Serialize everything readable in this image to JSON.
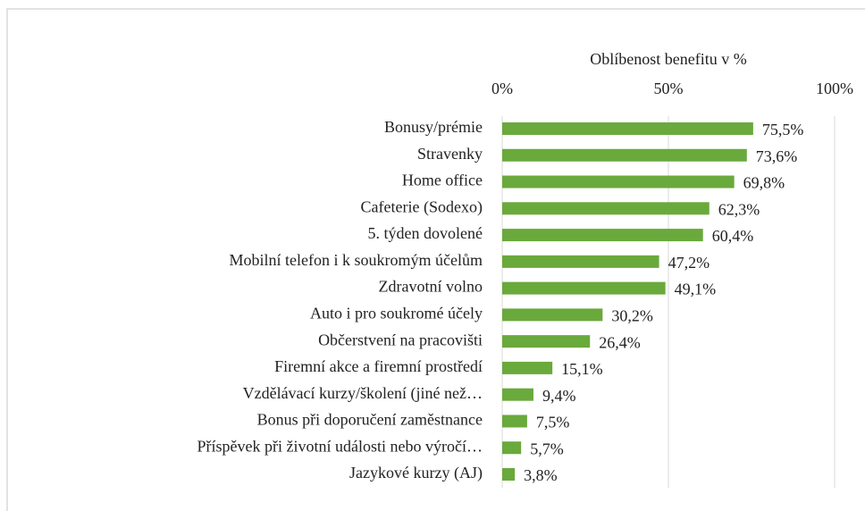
{
  "chart_data": {
    "type": "bar",
    "orientation": "horizontal",
    "title": "Oblíbenost benefitu v %",
    "categories": [
      "Bonusy/prémie",
      "Stravenky",
      "Home office",
      "Cafeterie (Sodexo)",
      "5. týden dovolené",
      "Mobilní telefon i k soukromým účelům",
      "Zdravotní volno",
      "Auto i pro soukromé účely",
      "Občerstvení na pracovišti",
      "Firemní akce a firemní prostředí",
      "Vzdělávací kurzy/školení (jiné než…",
      "Bonus při doporučení zaměstnance",
      "Příspěvek při životní události nebo výročí…",
      "Jazykové kurzy (AJ)"
    ],
    "values": [
      75.5,
      73.6,
      69.8,
      62.3,
      60.4,
      47.2,
      49.1,
      30.2,
      26.4,
      15.1,
      9.4,
      7.5,
      5.7,
      3.8
    ],
    "value_labels": [
      "75,5%",
      "73,6%",
      "69,8%",
      "62,3%",
      "60,4%",
      "47,2%",
      "49,1%",
      "30,2%",
      "26,4%",
      "15,1%",
      "9,4%",
      "7,5%",
      "5,7%",
      "3,8%"
    ],
    "color": "#6aa93c",
    "xlim": [
      0,
      100
    ],
    "xticks": [
      {
        "value": 0,
        "label": "0%"
      },
      {
        "value": 50,
        "label": "50%"
      },
      {
        "value": 100,
        "label": "100%"
      }
    ],
    "grid": true
  }
}
